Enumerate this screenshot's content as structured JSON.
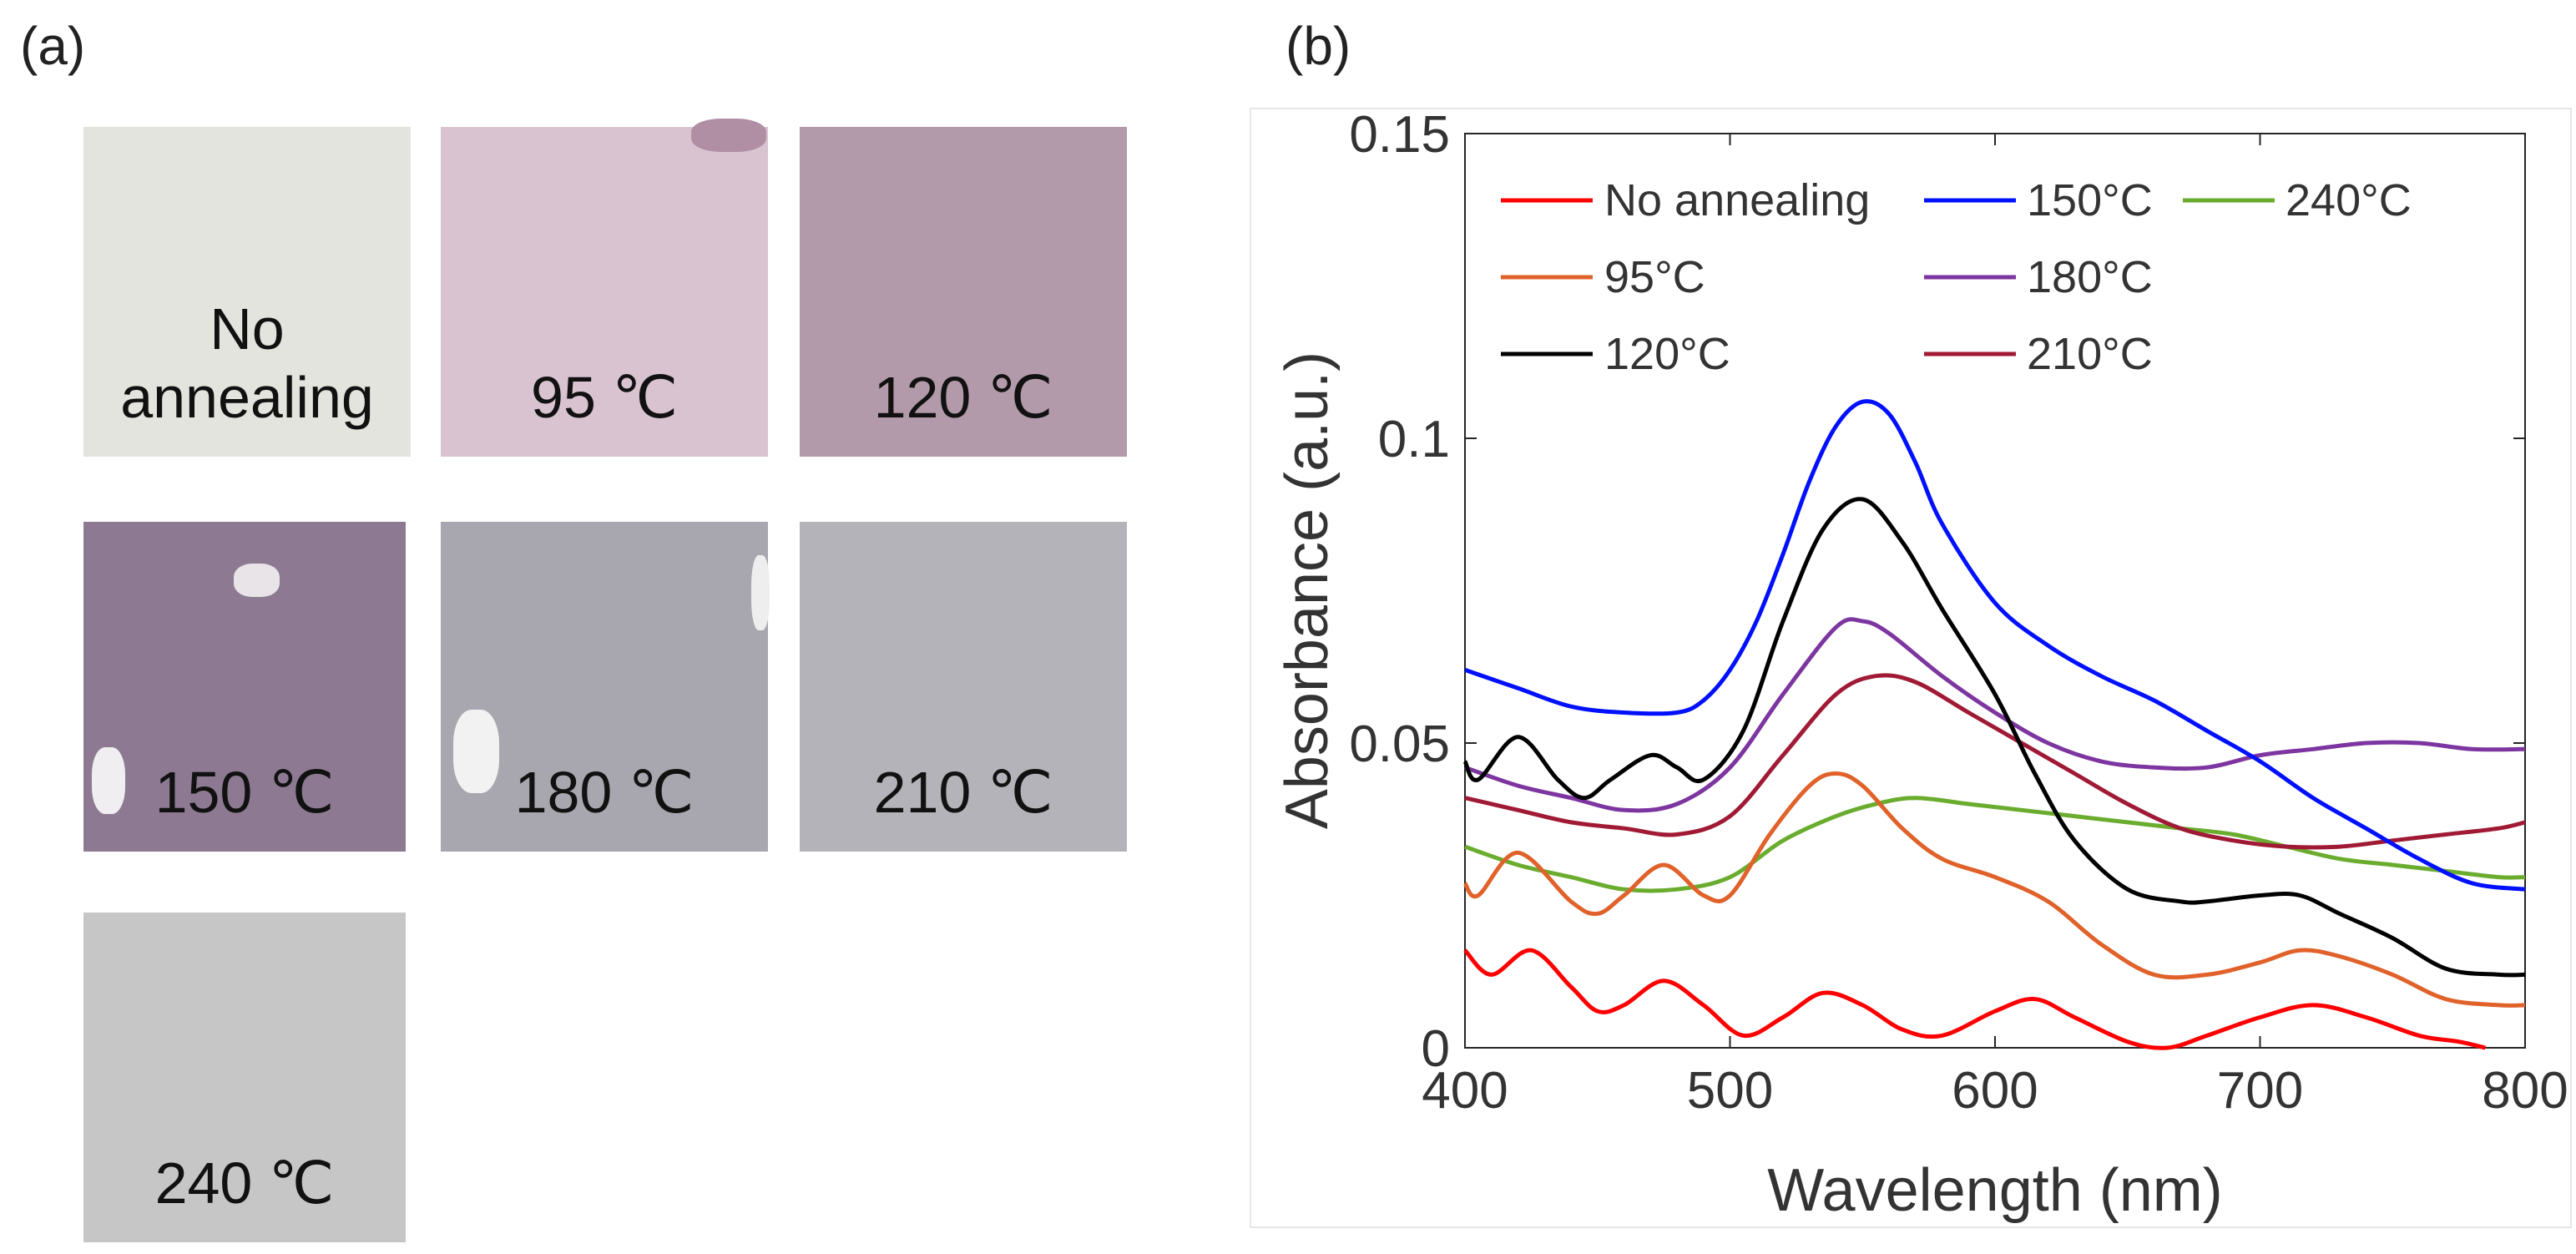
{
  "panels": {
    "a_label": "(a)",
    "b_label": "(b)"
  },
  "samples": [
    {
      "caption_line1": "No",
      "caption_line2": "annealing",
      "color": "#e4e4de"
    },
    {
      "caption_line1": "95 ℃",
      "caption_line2": "",
      "color": "#d9c3d1"
    },
    {
      "caption_line1": "120 ℃",
      "caption_line2": "",
      "color": "#b39aaa"
    },
    {
      "caption_line1": "150 ℃",
      "caption_line2": "",
      "color": "#8d7a92"
    },
    {
      "caption_line1": "180 ℃",
      "caption_line2": "",
      "color": "#a8a6ae"
    },
    {
      "caption_line1": "210 ℃",
      "caption_line2": "",
      "color": "#b4b3b9"
    },
    {
      "caption_line1": "240 ℃",
      "caption_line2": "",
      "color": "#c6c6c6"
    }
  ],
  "chart_data": {
    "type": "line",
    "xlabel": "Wavelength (nm)",
    "ylabel": "Absorbance (a.u.)",
    "xlim": [
      400,
      800
    ],
    "ylim": [
      0,
      0.15
    ],
    "xticks": [
      400,
      500,
      600,
      700,
      800
    ],
    "xtick_labels": [
      "400",
      "500",
      "600",
      "700",
      "800"
    ],
    "yticks": [
      0,
      0.05,
      0.1,
      0.15
    ],
    "ytick_labels": [
      "0",
      "0.05",
      "0.1",
      "0.15"
    ],
    "legend_position": "top",
    "series": [
      {
        "name": "No annealing",
        "color": "#ff0000",
        "x": [
          400,
          410,
          425,
          440,
          450,
          460,
          475,
          490,
          505,
          520,
          535,
          550,
          565,
          580,
          600,
          615,
          630,
          650,
          665,
          680,
          700,
          720,
          740,
          760,
          775,
          785
        ],
        "y": [
          0.016,
          0.012,
          0.016,
          0.01,
          0.006,
          0.007,
          0.011,
          0.007,
          0.002,
          0.005,
          0.009,
          0.007,
          0.003,
          0.002,
          0.006,
          0.008,
          0.005,
          0.001,
          0.0,
          0.002,
          0.005,
          0.007,
          0.005,
          0.002,
          0.001,
          0.0
        ]
      },
      {
        "name": "95°C",
        "color": "#e0622a",
        "x": [
          400,
          405,
          420,
          440,
          450,
          460,
          475,
          490,
          500,
          515,
          530,
          540,
          550,
          565,
          580,
          600,
          620,
          640,
          660,
          680,
          700,
          715,
          730,
          750,
          770,
          790,
          800
        ],
        "y": [
          0.027,
          0.025,
          0.032,
          0.024,
          0.022,
          0.025,
          0.03,
          0.025,
          0.025,
          0.035,
          0.043,
          0.045,
          0.043,
          0.036,
          0.031,
          0.028,
          0.024,
          0.017,
          0.012,
          0.012,
          0.014,
          0.016,
          0.015,
          0.012,
          0.008,
          0.007,
          0.007
        ]
      },
      {
        "name": "120°C",
        "color": "#000000",
        "x": [
          400,
          405,
          420,
          435,
          445,
          455,
          470,
          480,
          490,
          505,
          520,
          535,
          550,
          565,
          580,
          600,
          615,
          630,
          650,
          670,
          680,
          700,
          715,
          730,
          750,
          770,
          790,
          800
        ],
        "y": [
          0.047,
          0.044,
          0.051,
          0.044,
          0.041,
          0.044,
          0.048,
          0.046,
          0.044,
          0.052,
          0.07,
          0.085,
          0.09,
          0.083,
          0.072,
          0.058,
          0.045,
          0.034,
          0.026,
          0.024,
          0.024,
          0.025,
          0.025,
          0.022,
          0.018,
          0.013,
          0.012,
          0.012
        ]
      },
      {
        "name": "150°C",
        "color": "#0010ff",
        "x": [
          400,
          420,
          440,
          460,
          480,
          490,
          500,
          510,
          520,
          530,
          540,
          550,
          560,
          570,
          580,
          600,
          620,
          640,
          660,
          680,
          700,
          720,
          740,
          760,
          780,
          800
        ],
        "y": [
          0.062,
          0.059,
          0.056,
          0.055,
          0.055,
          0.057,
          0.062,
          0.07,
          0.081,
          0.093,
          0.102,
          0.106,
          0.104,
          0.096,
          0.086,
          0.073,
          0.066,
          0.061,
          0.057,
          0.052,
          0.047,
          0.041,
          0.036,
          0.031,
          0.027,
          0.026
        ]
      },
      {
        "name": "180°C",
        "color": "#7d35a0",
        "x": [
          400,
          420,
          440,
          460,
          480,
          500,
          520,
          540,
          550,
          560,
          580,
          600,
          620,
          640,
          660,
          680,
          700,
          720,
          740,
          760,
          780,
          800
        ],
        "y": [
          0.046,
          0.043,
          0.041,
          0.039,
          0.04,
          0.046,
          0.058,
          0.069,
          0.07,
          0.068,
          0.061,
          0.055,
          0.05,
          0.047,
          0.046,
          0.046,
          0.048,
          0.049,
          0.05,
          0.05,
          0.049,
          0.049
        ]
      },
      {
        "name": "210°C",
        "color": "#a01a35",
        "x": [
          400,
          420,
          440,
          460,
          480,
          500,
          520,
          540,
          555,
          570,
          590,
          610,
          630,
          650,
          670,
          690,
          710,
          730,
          750,
          770,
          790,
          800
        ],
        "y": [
          0.041,
          0.039,
          0.037,
          0.036,
          0.035,
          0.038,
          0.048,
          0.058,
          0.061,
          0.06,
          0.055,
          0.05,
          0.045,
          0.04,
          0.036,
          0.034,
          0.033,
          0.033,
          0.034,
          0.035,
          0.036,
          0.037
        ]
      },
      {
        "name": "240°C",
        "color": "#6aac2e",
        "x": [
          400,
          420,
          440,
          460,
          480,
          500,
          520,
          540,
          555,
          570,
          590,
          610,
          630,
          650,
          670,
          690,
          710,
          730,
          750,
          770,
          790,
          800
        ],
        "y": [
          0.033,
          0.03,
          0.028,
          0.026,
          0.026,
          0.028,
          0.034,
          0.038,
          0.04,
          0.041,
          0.04,
          0.039,
          0.038,
          0.037,
          0.036,
          0.035,
          0.033,
          0.031,
          0.03,
          0.029,
          0.028,
          0.028
        ]
      }
    ]
  }
}
